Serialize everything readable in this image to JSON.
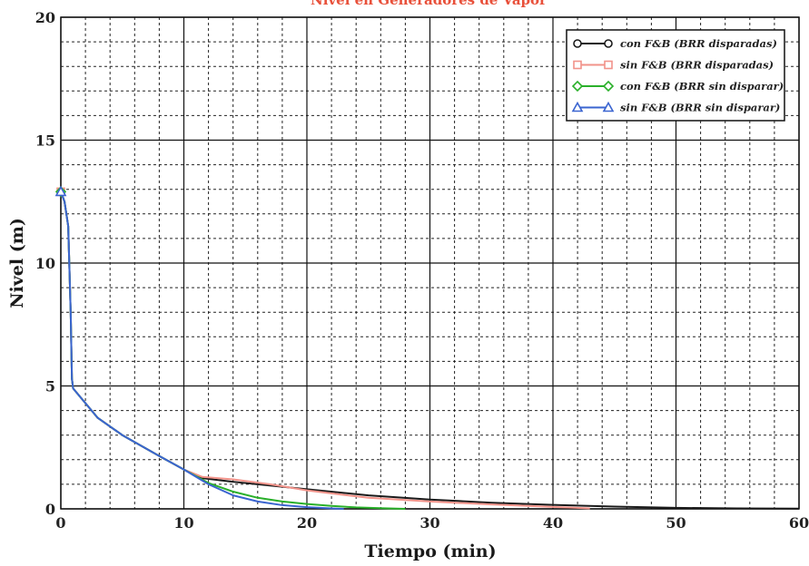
{
  "chart_data": {
    "type": "line",
    "title": "Nivel en Generadores de Vapor",
    "title_color": "#e8503a",
    "xlabel": "Tiempo (min)",
    "ylabel": "Nivel (m)",
    "xlim": [
      0,
      60
    ],
    "ylim": [
      0,
      20
    ],
    "x_ticks": [
      0,
      10,
      20,
      30,
      40,
      50,
      60
    ],
    "y_ticks": [
      0,
      5,
      10,
      15,
      20
    ],
    "grid": true,
    "legend_position": "top-right",
    "series": [
      {
        "name": "con F&B (BRR disparadas)",
        "color": "#1a1a1a",
        "marker": "circle",
        "points": [
          [
            0,
            12.9
          ],
          [
            0.3,
            12.5
          ],
          [
            0.6,
            11.5
          ],
          [
            0.8,
            8.0
          ],
          [
            0.9,
            5.3
          ],
          [
            1.0,
            4.9
          ],
          [
            1.5,
            4.6
          ],
          [
            3,
            3.7
          ],
          [
            5,
            3.0
          ],
          [
            8,
            2.15
          ],
          [
            10,
            1.6
          ],
          [
            11.5,
            1.25
          ],
          [
            14,
            1.1
          ],
          [
            17,
            0.95
          ],
          [
            20,
            0.8
          ],
          [
            25,
            0.55
          ],
          [
            30,
            0.38
          ],
          [
            35,
            0.25
          ],
          [
            40,
            0.16
          ],
          [
            45,
            0.09
          ],
          [
            50,
            0.04
          ],
          [
            55,
            0.02
          ],
          [
            60,
            0.01
          ]
        ]
      },
      {
        "name": "sin F&B (BRR disparadas)",
        "color": "#f2938a",
        "marker": "square",
        "points": [
          [
            0,
            12.9
          ],
          [
            0.3,
            12.5
          ],
          [
            0.6,
            11.5
          ],
          [
            0.8,
            8.0
          ],
          [
            0.9,
            5.3
          ],
          [
            1.0,
            4.9
          ],
          [
            1.5,
            4.6
          ],
          [
            3,
            3.7
          ],
          [
            5,
            3.0
          ],
          [
            8,
            2.15
          ],
          [
            10,
            1.6
          ],
          [
            11.5,
            1.3
          ],
          [
            14,
            1.2
          ],
          [
            17,
            1.0
          ],
          [
            20,
            0.75
          ],
          [
            25,
            0.45
          ],
          [
            30,
            0.3
          ],
          [
            35,
            0.18
          ],
          [
            40,
            0.08
          ],
          [
            43,
            0.02
          ]
        ]
      },
      {
        "name": "con F&B (BRR sin disparar)",
        "color": "#2ab02a",
        "marker": "diamond",
        "points": [
          [
            0,
            12.9
          ],
          [
            0.3,
            12.5
          ],
          [
            0.6,
            11.5
          ],
          [
            0.8,
            8.0
          ],
          [
            0.9,
            5.3
          ],
          [
            1.0,
            4.9
          ],
          [
            1.5,
            4.6
          ],
          [
            3,
            3.7
          ],
          [
            5,
            3.0
          ],
          [
            8,
            2.15
          ],
          [
            10,
            1.6
          ],
          [
            12,
            1.05
          ],
          [
            14,
            0.7
          ],
          [
            16,
            0.45
          ],
          [
            18,
            0.3
          ],
          [
            20,
            0.2
          ],
          [
            22,
            0.12
          ],
          [
            24,
            0.06
          ],
          [
            26,
            0.03
          ],
          [
            28,
            0.0
          ]
        ]
      },
      {
        "name": "sin F&B (BRR sin disparar)",
        "color": "#3a64d0",
        "marker": "triangle",
        "points": [
          [
            0,
            12.9
          ],
          [
            0.3,
            12.5
          ],
          [
            0.6,
            11.5
          ],
          [
            0.8,
            8.0
          ],
          [
            0.9,
            5.3
          ],
          [
            1.0,
            4.9
          ],
          [
            1.5,
            4.6
          ],
          [
            3,
            3.7
          ],
          [
            5,
            3.0
          ],
          [
            8,
            2.15
          ],
          [
            10,
            1.6
          ],
          [
            12,
            1.0
          ],
          [
            14,
            0.55
          ],
          [
            16,
            0.3
          ],
          [
            18,
            0.15
          ],
          [
            20,
            0.07
          ],
          [
            22,
            0.02
          ],
          [
            23,
            0.0
          ]
        ]
      }
    ]
  }
}
